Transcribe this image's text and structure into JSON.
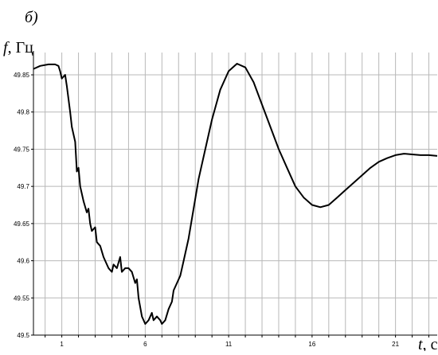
{
  "panel_label": "б)",
  "colors": {
    "line": "#000000",
    "grid": "#b8b8b8",
    "axis": "#000000",
    "background": "#ffffff"
  },
  "chart_data": {
    "type": "line",
    "title": "",
    "ylabel": {
      "symbol": "f",
      "unit": ", Гц"
    },
    "xlabel": {
      "symbol": "t",
      "unit": ", с"
    },
    "ylim": [
      49.5,
      49.88
    ],
    "xlim": [
      -0.7,
      23.5
    ],
    "grid": true,
    "legend": "none",
    "xticks": [
      1,
      6,
      11,
      16,
      21
    ],
    "yticks": [
      49.5,
      49.55,
      49.6,
      49.65,
      49.7,
      49.75,
      49.8,
      49.85
    ],
    "ytick_labels": [
      "49.5",
      "49.55",
      "49.6",
      "49.65",
      "49.7",
      "49.75",
      "49.8",
      "49.85"
    ],
    "series": [
      {
        "x": [
          -0.7,
          -0.3,
          0.2,
          0.6,
          0.8,
          0.9,
          1.0,
          1.2,
          1.3,
          1.5,
          1.6,
          1.8,
          1.9,
          2.0,
          2.1,
          2.2,
          2.3,
          2.5,
          2.6,
          2.7,
          2.8,
          3.0,
          3.1,
          3.3,
          3.5,
          3.6,
          3.8,
          4.0,
          4.1,
          4.3,
          4.5,
          4.6,
          4.8,
          5.0,
          5.2,
          5.4,
          5.5,
          5.6,
          5.8,
          6.0,
          6.2,
          6.4,
          6.5,
          6.7,
          6.9,
          7.0,
          7.2,
          7.4,
          7.6,
          7.7,
          7.9,
          8.1,
          8.3,
          8.6,
          8.9,
          9.2,
          9.6,
          10.0,
          10.5,
          11.0,
          11.5,
          12.0,
          12.5,
          13.0,
          13.5,
          14.0,
          14.5,
          15.0,
          15.5,
          16.0,
          16.5,
          17.0,
          17.5,
          18.0,
          18.5,
          19.0,
          19.5,
          20.0,
          20.5,
          21.0,
          21.5,
          22.0,
          22.5,
          23.0,
          23.5
        ],
        "y": [
          49.858,
          49.862,
          49.864,
          49.864,
          49.862,
          49.855,
          49.845,
          49.85,
          49.835,
          49.8,
          49.78,
          49.76,
          49.72,
          49.725,
          49.7,
          49.69,
          49.68,
          49.665,
          49.67,
          49.65,
          49.64,
          49.645,
          49.625,
          49.62,
          49.605,
          49.6,
          49.59,
          49.585,
          49.595,
          49.59,
          49.605,
          49.585,
          49.59,
          49.59,
          49.585,
          49.57,
          49.575,
          49.55,
          49.525,
          49.515,
          49.52,
          49.53,
          49.52,
          49.525,
          49.52,
          49.515,
          49.52,
          49.535,
          49.545,
          49.56,
          49.57,
          49.58,
          49.6,
          49.63,
          49.67,
          49.71,
          49.75,
          49.79,
          49.83,
          49.855,
          49.865,
          49.86,
          49.84,
          49.81,
          49.78,
          49.75,
          49.725,
          49.7,
          49.685,
          49.675,
          49.672,
          49.675,
          49.685,
          49.695,
          49.705,
          49.715,
          49.725,
          49.733,
          49.738,
          49.742,
          49.744,
          49.743,
          49.742,
          49.742,
          49.741
        ]
      }
    ]
  }
}
